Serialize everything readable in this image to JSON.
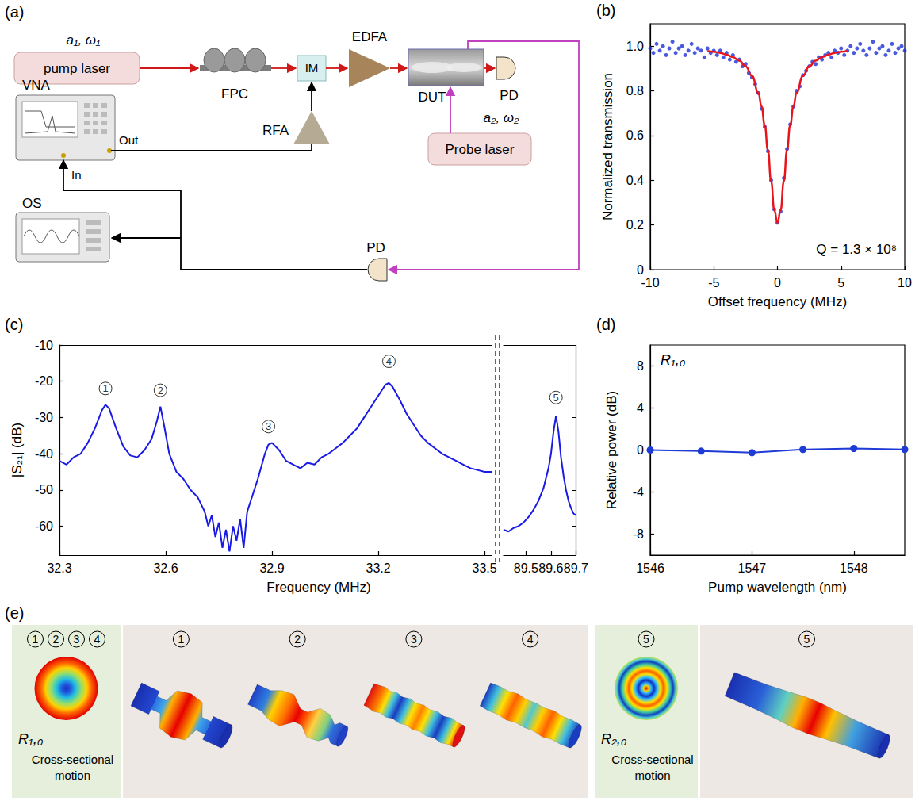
{
  "diagram": {
    "panel": "(a)",
    "nodes": {
      "pump_laser": {
        "label": "pump laser",
        "signal": "a₁, ω₁"
      },
      "fpc": {
        "label": "FPC"
      },
      "im": {
        "label": "IM"
      },
      "edfa": {
        "label": "EDFA"
      },
      "dut": {
        "label": "DUT"
      },
      "pd_out": {
        "label": "PD"
      },
      "probe_laser": {
        "label": "Probe laser",
        "signal": "a₂, ω₂"
      },
      "vna": {
        "label": "VNA",
        "out": "Out",
        "in": "In"
      },
      "rfa": {
        "label": "RFA"
      },
      "os": {
        "label": "OS"
      },
      "pd_probe": {
        "label": "PD"
      }
    }
  },
  "chart_data": [
    {
      "panel": "(b)",
      "type": "scatter",
      "xlabel": "Offset frequency (MHz)",
      "ylabel": "Normalized transmission",
      "xlim": [
        -10,
        10
      ],
      "xticks": [
        -10,
        -5,
        0,
        5,
        10
      ],
      "ylim": [
        0,
        1.1
      ],
      "yticks": [
        0,
        0.2,
        0.4,
        0.6,
        0.8,
        {
          "value": 1,
          "label": "1.0"
        }
      ],
      "annotation": "Q = 1.3 × 10⁸",
      "series": [
        {
          "type": "scatter",
          "marker": "circle",
          "color": "#1c2fd8",
          "x": [
            -10,
            -9.75,
            -9.5,
            -9.25,
            -9,
            -8.75,
            -8.5,
            -8.25,
            -8,
            -7.75,
            -7.5,
            -7.25,
            -7,
            -6.75,
            -6.5,
            -6.25,
            -6,
            -5.75,
            -5.5,
            -5.25,
            -5,
            -4.75,
            -4.5,
            -4.25,
            -4,
            -3.75,
            -3.5,
            -3.25,
            -3,
            -2.75,
            -2.5,
            -2.25,
            -2,
            -1.75,
            -1.5,
            -1.25,
            -1,
            -0.75,
            -0.5,
            -0.25,
            0,
            0.25,
            0.5,
            0.75,
            1,
            1.25,
            1.5,
            1.75,
            2,
            2.25,
            2.5,
            2.75,
            3,
            3.25,
            3.5,
            3.75,
            4,
            4.25,
            4.5,
            4.75,
            5,
            5.25,
            5.5,
            5.75,
            6,
            6.25,
            6.5,
            6.75,
            7,
            7.25,
            7.5,
            7.75,
            8,
            8.25,
            8.5,
            8.75,
            9,
            9.25,
            9.5,
            9.75,
            10
          ],
          "values": [
            0.99,
            0.97,
            1.01,
            0.98,
            1.0,
            0.96,
            0.99,
            1.02,
            0.97,
            0.99,
            1.0,
            0.96,
            0.98,
            1.01,
            0.97,
            0.99,
            0.98,
            0.95,
            0.99,
            0.97,
            0.98,
            0.96,
            0.98,
            0.95,
            0.97,
            0.94,
            0.96,
            0.93,
            0.94,
            0.91,
            0.92,
            0.88,
            0.86,
            0.83,
            0.79,
            0.72,
            0.64,
            0.53,
            0.4,
            0.27,
            0.21,
            0.26,
            0.41,
            0.54,
            0.65,
            0.73,
            0.8,
            0.82,
            0.87,
            0.89,
            0.91,
            0.93,
            0.92,
            0.95,
            0.94,
            0.96,
            0.97,
            0.95,
            0.98,
            0.97,
            0.99,
            0.96,
            0.98,
            1.0,
            0.97,
            0.99,
            1.01,
            0.98,
            0.96,
            0.99,
            1.02,
            0.97,
            0.99,
            1.0,
            0.96,
            0.98,
            1.01,
            0.97,
            0.99,
            1.0,
            0.98
          ]
        },
        {
          "type": "line",
          "line_style": "solid",
          "color": "#e8141c",
          "x": [
            -5.5,
            -5,
            -4.5,
            -4,
            -3.5,
            -3,
            -2.5,
            -2,
            -1.5,
            -1.25,
            -1,
            -0.75,
            -0.5,
            -0.25,
            0,
            0.25,
            0.5,
            0.75,
            1,
            1.25,
            1.5,
            2,
            2.5,
            3,
            3.5,
            4,
            4.5,
            5,
            5.5
          ],
          "values": [
            0.979,
            0.975,
            0.97,
            0.962,
            0.951,
            0.935,
            0.909,
            0.867,
            0.791,
            0.73,
            0.646,
            0.534,
            0.396,
            0.267,
            0.21,
            0.267,
            0.396,
            0.534,
            0.646,
            0.73,
            0.791,
            0.867,
            0.909,
            0.935,
            0.951,
            0.962,
            0.97,
            0.975,
            0.979
          ]
        }
      ]
    },
    {
      "panel": "(c)",
      "type": "line",
      "xlabel": "Frequency (MHz)",
      "ylabel": "|S₂₁| (dB)",
      "ylim": [
        -68,
        -10
      ],
      "yticks": [
        -60,
        -50,
        -40,
        -30,
        -20,
        -10
      ],
      "broken_x": [
        {
          "xlim": [
            32.3,
            33.52
          ],
          "xticks": [
            32.3,
            32.6,
            32.9,
            33.2,
            33.5
          ]
        },
        {
          "xlim": [
            89.41,
            89.7
          ],
          "xticks": [
            89.5,
            89.6,
            89.7
          ]
        }
      ],
      "series": [
        {
          "color": "#1a1ae6",
          "line_style": "solid",
          "x": [
            32.3,
            32.32,
            32.34,
            32.36,
            32.38,
            32.4,
            32.42,
            32.43,
            32.44,
            32.46,
            32.48,
            32.5,
            32.52,
            32.54,
            32.56,
            32.575,
            32.585,
            32.595,
            32.61,
            32.63,
            32.65,
            32.67,
            32.69,
            32.71,
            32.72,
            32.73,
            32.74,
            32.75,
            32.76,
            32.77,
            32.78,
            32.79,
            32.8,
            32.81,
            32.82,
            32.83,
            32.84,
            32.86,
            32.88,
            32.89,
            32.9,
            32.92,
            32.94,
            32.96,
            32.98,
            33,
            33.02,
            33.04,
            33.06,
            33.08,
            33.1,
            33.12,
            33.14,
            33.16,
            33.18,
            33.2,
            33.22,
            33.23,
            33.24,
            33.26,
            33.28,
            33.3,
            33.32,
            33.34,
            33.36,
            33.38,
            33.4,
            33.42,
            33.44,
            33.46,
            33.48,
            33.5,
            33.52
          ],
          "values": [
            -42,
            -43,
            -41,
            -40,
            -37,
            -33,
            -28,
            -26.5,
            -27.5,
            -33,
            -38,
            -40.5,
            -41,
            -39,
            -36,
            -31,
            -27,
            -32,
            -40,
            -45,
            -47,
            -50,
            -52,
            -56,
            -60,
            -57,
            -63,
            -59,
            -66,
            -61,
            -67,
            -60,
            -64,
            -58,
            -66,
            -56,
            -53,
            -47,
            -40,
            -37.5,
            -37,
            -39,
            -42,
            -43,
            -44,
            -42.5,
            -43,
            -41,
            -40,
            -38.5,
            -37,
            -35,
            -33,
            -30,
            -27,
            -24,
            -21,
            -20.5,
            -21.5,
            -25,
            -29,
            -32,
            -35,
            -37,
            -38.5,
            -40,
            -41,
            -42,
            -43,
            -44,
            -44.5,
            -45,
            -45
          ]
        },
        {
          "color": "#1a1ae6",
          "line_style": "solid",
          "x": [
            89.41,
            89.43,
            89.45,
            89.47,
            89.49,
            89.51,
            89.53,
            89.55,
            89.57,
            89.59,
            89.6,
            89.61,
            89.62,
            89.63,
            89.64,
            89.65,
            89.66,
            89.67,
            89.68,
            89.69,
            89.7
          ],
          "values": [
            -61,
            -61.5,
            -60.5,
            -60,
            -59,
            -57.5,
            -55.5,
            -53,
            -49.5,
            -44,
            -40,
            -34,
            -29.5,
            -34,
            -41,
            -46,
            -50,
            -53,
            -55,
            -56.5,
            -57
          ]
        }
      ],
      "annotations": [
        {
          "text": "1",
          "x": 32.43,
          "y": -22
        },
        {
          "text": "2",
          "x": 32.585,
          "y": -22.5
        },
        {
          "text": "3",
          "x": 32.89,
          "y": -32.5
        },
        {
          "text": "4",
          "x": 33.23,
          "y": -14.5
        },
        {
          "text": "5",
          "x": 89.62,
          "y": -24.5
        }
      ]
    },
    {
      "panel": "(d)",
      "type": "line",
      "marker": "circle",
      "xlabel": "Pump wavelength (nm)",
      "ylabel": "Relative power (dB)",
      "annotation": "R₁,₀",
      "xlim": [
        1546,
        1548.5
      ],
      "xticks": [
        1546,
        1547,
        1548
      ],
      "ylim": [
        -10,
        10
      ],
      "yticks": [
        -8,
        -4,
        0,
        4,
        8
      ],
      "series": [
        {
          "color": "#1f3bd6",
          "x": [
            1546,
            1546.5,
            1547,
            1547.5,
            1548,
            1548.5
          ],
          "values": [
            0,
            -0.1,
            -0.25,
            0.05,
            0.15,
            0.05
          ]
        }
      ]
    }
  ],
  "mode_shapes": {
    "panel": "(e)",
    "groups": [
      {
        "modes": [
          "1",
          "2",
          "3",
          "4"
        ],
        "cross_section": "R₁,₀",
        "caption": "Cross-sectional motion"
      },
      {
        "modes": [
          "5"
        ],
        "cross_section": "R₂,₀",
        "caption": "Cross-sectional motion"
      }
    ]
  }
}
